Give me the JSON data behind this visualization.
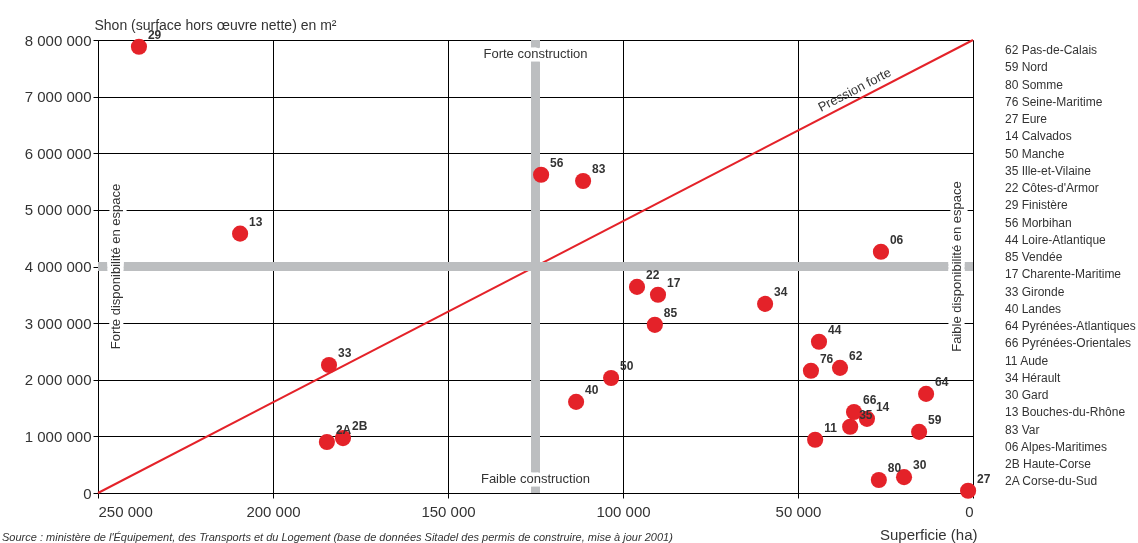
{
  "chart_data": {
    "type": "scatter",
    "xlabel": "Superficie (ha)",
    "ylabel": "Shon (surface hors œuvre nette) en m²",
    "xlim": [
      250000,
      0
    ],
    "xticks": [
      {
        "value": 250000,
        "label": "250 000"
      },
      {
        "value": 200000,
        "label": "200 000"
      },
      {
        "value": 150000,
        "label": "150 000"
      },
      {
        "value": 100000,
        "label": "100 000"
      },
      {
        "value": 50000,
        "label": "50 000"
      },
      0
    ],
    "ylim": [
      0,
      8000000
    ],
    "yticks": [
      0,
      {
        "value": 1000000,
        "label": "1 000 000"
      },
      {
        "value": 2000000,
        "label": "2 000 000"
      },
      {
        "value": 3000000,
        "label": "3 000 000"
      },
      {
        "value": 4000000,
        "label": "4 000 000"
      },
      {
        "value": 5000000,
        "label": "5 000 000"
      },
      {
        "value": 6000000,
        "label": "6 000 000"
      },
      {
        "value": 7000000,
        "label": "7 000 000"
      },
      {
        "value": 8000000,
        "label": "8 000 000"
      }
    ],
    "grid": true,
    "series": [
      {
        "color": "#e42229",
        "marker": "circle",
        "x": [
          38000,
          15400,
          26900,
          46300,
          1400,
          30300,
          103400,
          35100,
          96000,
          238300,
          123400,
          44000,
          90900,
          90000,
          184000,
          113400,
          13400,
          34000,
          45100,
          59400,
          19700,
          209400,
          111400,
          26300,
          180000,
          184600
        ],
        "values": [
          2210000,
          1080000,
          230000,
          2160000,
          40000,
          1310000,
          2030000,
          1170000,
          3640000,
          7880000,
          5620000,
          2670000,
          2970000,
          3500000,
          2260000,
          1610000,
          1750000,
          1430000,
          940000,
          3340000,
          280000,
          4580000,
          5510000,
          4260000,
          970000,
          900000
        ]
      },
      {
        "type": "line",
        "name": "Pression forte",
        "color": "#e42229",
        "x": [
          250000,
          0
        ],
        "values": [
          0,
          8000000
        ]
      }
    ],
    "ref_lines": [
      {
        "axis": "x",
        "value": 125000,
        "color": "#bcbec0"
      },
      {
        "axis": "y",
        "value": 4000000,
        "color": "#bcbec0"
      }
    ],
    "annotations": [
      "Source : ministère de l'Équipement, des Transports et du Logement (base de données Sitadel des permis de construire, mise à jour 2001)",
      {
        "text": "Forte construction",
        "x": 125000,
        "y": 7750000
      },
      {
        "text": "Faible construction",
        "x": 125000,
        "y": 250000
      },
      {
        "text": "Forte disponibilité en espace",
        "x": 245000,
        "y": 4000000
      },
      {
        "text": "Faible disponibilité en espace",
        "x": 4500,
        "y": 4000000
      },
      {
        "text": "62",
        "x": 38000,
        "y": 2210000
      },
      {
        "text": "59",
        "x": 15400,
        "y": 1080000
      },
      {
        "text": "80",
        "x": 26900,
        "y": 230000
      },
      {
        "text": "76",
        "x": 46300,
        "y": 2160000
      },
      {
        "text": "27",
        "x": 1400,
        "y": 40000
      },
      {
        "text": "14",
        "x": 30300,
        "y": 1310000
      },
      {
        "text": "50",
        "x": 103400,
        "y": 2030000
      },
      {
        "text": "35",
        "x": 35100,
        "y": 1170000
      },
      {
        "text": "22",
        "x": 96000,
        "y": 3640000
      },
      {
        "text": "29",
        "x": 238300,
        "y": 7880000
      },
      {
        "text": "56",
        "x": 123400,
        "y": 5620000
      },
      {
        "text": "44",
        "x": 44000,
        "y": 2670000
      },
      {
        "text": "85",
        "x": 90900,
        "y": 2970000
      },
      {
        "text": "17",
        "x": 90000,
        "y": 3500000
      },
      {
        "text": "33",
        "x": 184000,
        "y": 2260000
      },
      {
        "text": "40",
        "x": 113400,
        "y": 1610000
      },
      {
        "text": "64",
        "x": 13400,
        "y": 1750000
      },
      {
        "text": "66",
        "x": 34000,
        "y": 1430000
      },
      {
        "text": "11",
        "x": 45100,
        "y": 940000
      },
      {
        "text": "34",
        "x": 59400,
        "y": 3340000
      },
      {
        "text": "30",
        "x": 19700,
        "y": 280000
      },
      {
        "text": "13",
        "x": 209400,
        "y": 4580000
      },
      {
        "text": "83",
        "x": 111400,
        "y": 5510000
      },
      {
        "text": "06",
        "x": 26300,
        "y": 4260000
      },
      {
        "text": "2B",
        "x": 180000,
        "y": 970000
      },
      {
        "text": "2A",
        "x": 184600,
        "y": 900000
      },
      "62  Pas-de-Calais",
      "59  Nord",
      "80  Somme",
      "76  Seine-Maritime",
      "27  Eure",
      "14  Calvados",
      "50  Manche",
      "35  Ille-et-Vilaine",
      "22  Côtes-d'Armor",
      "29  Finistère",
      "56  Morbihan",
      "44  Loire-Atlantique",
      "85  Vendée",
      "17  Charente-Maritime",
      "33  Gironde",
      "40  Landes",
      "64  Pyrénées-Atlantiques",
      "66  Pyrénées-Orientales",
      "11  Aude",
      "34  Hérault",
      "30  Gard",
      "13  Bouches-du-Rhône",
      "83  Var",
      "06  Alpes-Maritimes",
      "2B  Haute-Corse",
      "2A Corse-du-Sud"
    ]
  }
}
